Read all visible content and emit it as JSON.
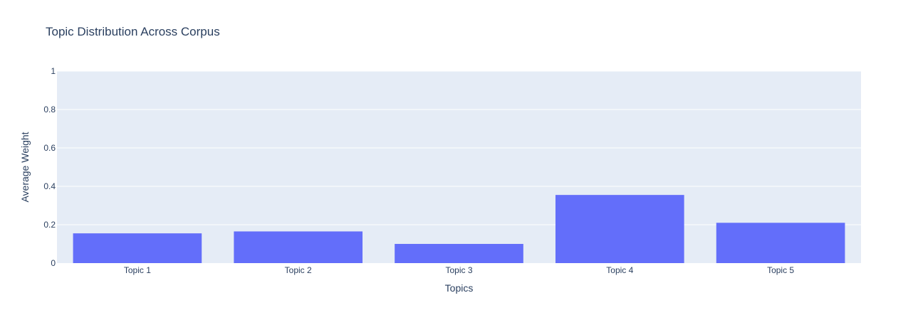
{
  "chart_data": {
    "type": "bar",
    "title": "Topic Distribution Across Corpus",
    "xlabel": "Topics",
    "ylabel": "Average Weight",
    "categories": [
      "Topic 1",
      "Topic 2",
      "Topic 3",
      "Topic 4",
      "Topic 5"
    ],
    "values": [
      0.155,
      0.165,
      0.1,
      0.355,
      0.21
    ],
    "ylim": [
      0,
      1
    ],
    "yticks": [
      0,
      0.2,
      0.4,
      0.6,
      0.8,
      1
    ],
    "ytick_labels": [
      "0",
      "0.2",
      "0.4",
      "0.6",
      "0.8",
      "1"
    ],
    "grid": true,
    "colors": {
      "bar": "#636efa",
      "plot_bg": "#e5ecf6",
      "grid": "#ffffff",
      "text": "#2a3f5f"
    }
  }
}
